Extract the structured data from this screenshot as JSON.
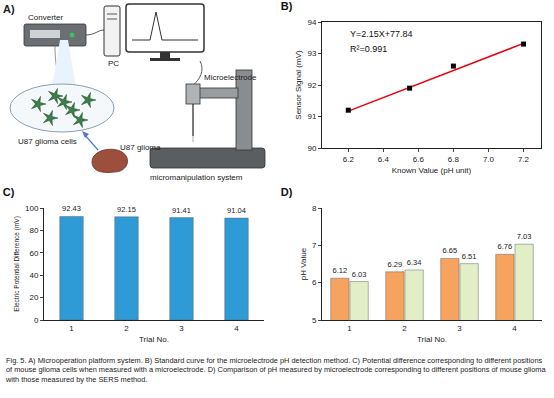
{
  "diagram": {
    "label": "A)",
    "converter": "Converter",
    "pc": "PC",
    "microelectrode": "Microelectrode",
    "cells": "U87 glioma cells",
    "tissue": "U87 glioma",
    "manipulator": "micromanipulation system"
  },
  "chart_data": [
    {
      "type": "scatter",
      "title": "B)",
      "x_label": "Known Value (pH unit)",
      "y_label": "Sensor Signal (mV)",
      "annotations": [
        "Y=2.15X+77.84",
        "R²=0.991"
      ],
      "series": [
        {
          "type": "scatter",
          "x": [
            6.2,
            6.55,
            6.8,
            7.2
          ],
          "values": [
            91.2,
            91.9,
            92.6,
            93.3
          ],
          "color": "#000000",
          "marker": "square"
        },
        {
          "type": "line",
          "x": [
            6.2,
            7.2
          ],
          "values": [
            91.17,
            93.32
          ],
          "color": "#e8000b",
          "line_style": "solid"
        }
      ],
      "xlim": [
        6.05,
        7.3
      ],
      "xticks": [
        6.2,
        6.4,
        6.6,
        6.8,
        {
          "value": 7,
          "label": "7.0"
        },
        7.2
      ],
      "ylim": [
        90,
        94
      ],
      "yticks": [
        90,
        91,
        92,
        93,
        94
      ],
      "grid": false
    },
    {
      "type": "bar",
      "title": "C)",
      "x_label": "Trial No.",
      "y_label": "Electric Potential Difference (mV)",
      "categories": [
        "1",
        "2",
        "3",
        "4"
      ],
      "values": [
        92.43,
        92.15,
        91.41,
        91.04
      ],
      "color": "#2e9bd6",
      "ylim": [
        0,
        100
      ],
      "yticks": [
        0,
        20,
        40,
        60,
        80,
        100
      ],
      "data_labels": true,
      "grid": false
    },
    {
      "type": "bar",
      "title": "D)",
      "x_label": "Trial No.",
      "y_label": "pH Value",
      "categories": [
        "1",
        "2",
        "3",
        "4"
      ],
      "series": [
        {
          "color": "#f5a35e",
          "values": [
            6.12,
            6.29,
            6.65,
            6.76
          ]
        },
        {
          "color": "#e2efc6",
          "values": [
            6.03,
            6.34,
            6.51,
            7.03
          ]
        }
      ],
      "ylim": [
        5,
        8
      ],
      "yticks": [
        5,
        6,
        7,
        8
      ],
      "data_labels": true,
      "grid": false
    }
  ],
  "caption": "Fig. 5. A) Microoperation platform system. B) Standard curve for the microelectrode pH detection method. C) Potential difference corresponding to different positions of mouse glioma cells when measured with a microelectrode. D) Comparison of pH measured by microelectrode corresponding to different positions of mouse glioma with those measured by the SERS method."
}
